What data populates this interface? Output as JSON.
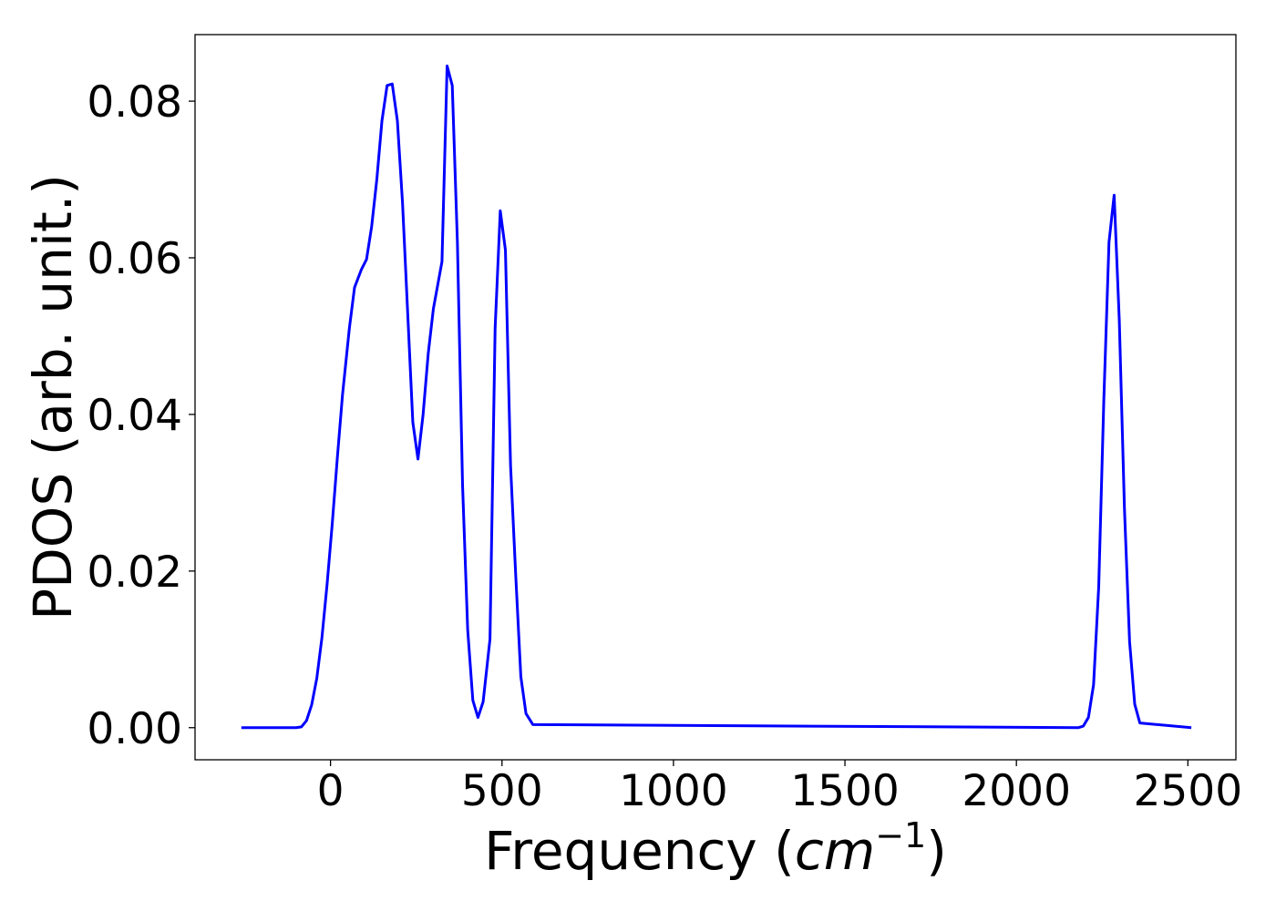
{
  "chart_data": {
    "type": "line",
    "title": "",
    "xlabel": {
      "prefix": "Frequency (",
      "unit_base": "cm",
      "unit_exponent": "−1",
      "suffix": ")"
    },
    "ylabel": "PDOS (arb. unit.)",
    "xlim": [
      -395,
      2640
    ],
    "ylim": [
      -0.0041,
      0.0885
    ],
    "xticks": [
      0,
      500,
      1000,
      1500,
      2000,
      2500
    ],
    "xtick_labels": [
      "0",
      "500",
      "1000",
      "1500",
      "2000",
      "2500"
    ],
    "yticks": [
      0.0,
      0.02,
      0.04,
      0.06,
      0.08
    ],
    "ytick_labels": [
      "0.00",
      "0.02",
      "0.04",
      "0.06",
      "0.08"
    ],
    "grid": false,
    "legend": "none",
    "series": [
      {
        "color": "#0000ff",
        "x": [
          -260,
          -100,
          -85,
          -70,
          -55,
          -40,
          -25,
          -10,
          5,
          20,
          35,
          55,
          70,
          90,
          105,
          120,
          135,
          150,
          165,
          180,
          195,
          210,
          225,
          240,
          255,
          270,
          285,
          300,
          325,
          340,
          355,
          370,
          385,
          400,
          415,
          430,
          445,
          465,
          480,
          495,
          510,
          525,
          540,
          555,
          570,
          590,
          2180,
          2195,
          2210,
          2225,
          2240,
          2255,
          2270,
          2285,
          2300,
          2315,
          2330,
          2345,
          2360,
          2510
        ],
        "y": [
          0.0,
          0.0,
          0.0001,
          0.0009,
          0.0029,
          0.0063,
          0.0115,
          0.0183,
          0.026,
          0.0345,
          0.0425,
          0.051,
          0.0562,
          0.0585,
          0.0598,
          0.064,
          0.07,
          0.0775,
          0.082,
          0.0822,
          0.0775,
          0.067,
          0.053,
          0.039,
          0.0343,
          0.04,
          0.0478,
          0.0535,
          0.0595,
          0.0845,
          0.082,
          0.062,
          0.031,
          0.0125,
          0.0035,
          0.0013,
          0.0033,
          0.0113,
          0.051,
          0.066,
          0.061,
          0.0335,
          0.0195,
          0.0065,
          0.0018,
          0.0004,
          0.0,
          0.0002,
          0.0013,
          0.0055,
          0.018,
          0.042,
          0.062,
          0.068,
          0.052,
          0.028,
          0.011,
          0.003,
          0.0006,
          0.0
        ]
      }
    ]
  }
}
